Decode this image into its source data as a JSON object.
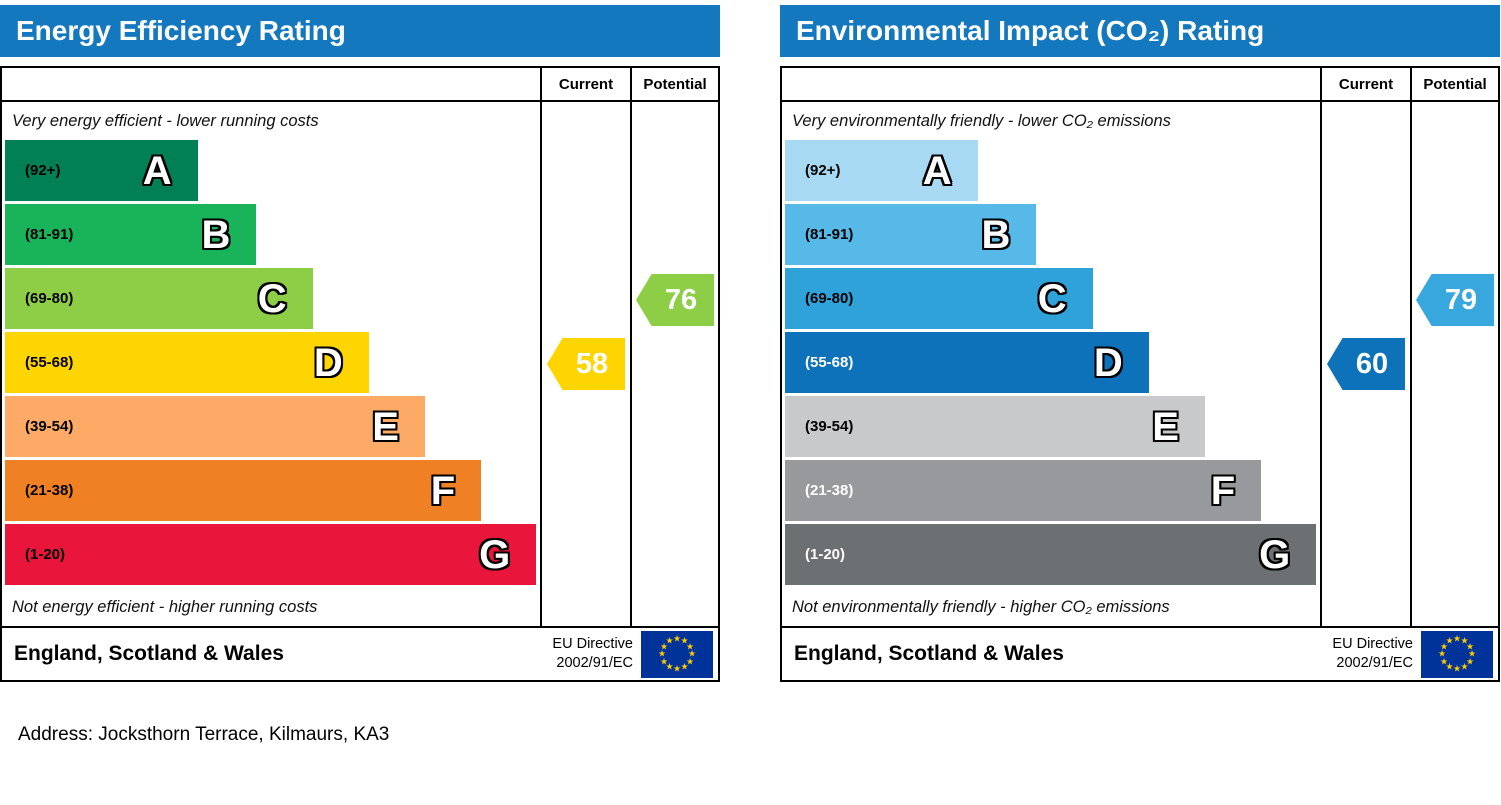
{
  "page": {
    "address_line": "Address: Jocksthorn Terrace, Kilmaurs, KA3"
  },
  "chart_data": [
    {
      "type": "bar",
      "subtype": "epc-rating-scale",
      "title": "Energy Efficiency Rating",
      "columns": {
        "current": "Current",
        "potential": "Potential"
      },
      "top_caption": "Very energy efficient - lower running costs",
      "bottom_caption": "Not energy efficient - higher running costs",
      "header_color": "#1478be",
      "bands": [
        {
          "letter": "A",
          "range": "(92+)",
          "color": "#008054",
          "width_pct": 36,
          "label_color": "#000000"
        },
        {
          "letter": "B",
          "range": "(81-91)",
          "color": "#19b459",
          "width_pct": 47,
          "label_color": "#000000"
        },
        {
          "letter": "C",
          "range": "(69-80)",
          "color": "#8dce46",
          "width_pct": 57.5,
          "label_color": "#000000"
        },
        {
          "letter": "D",
          "range": "(55-68)",
          "color": "#ffd500",
          "width_pct": 68,
          "label_color": "#000000"
        },
        {
          "letter": "E",
          "range": "(39-54)",
          "color": "#fcaa65",
          "width_pct": 78.5,
          "label_color": "#000000"
        },
        {
          "letter": "F",
          "range": "(21-38)",
          "color": "#ef8023",
          "width_pct": 89,
          "label_color": "#000000"
        },
        {
          "letter": "G",
          "range": "(1-20)",
          "color": "#e9153b",
          "width_pct": 99.3,
          "label_color": "#000000"
        }
      ],
      "current": {
        "value": "58",
        "band": "D",
        "band_index": 3,
        "color": "#ffd500"
      },
      "potential": {
        "value": "76",
        "band": "C",
        "band_index": 2,
        "color": "#8dce46"
      },
      "footer": {
        "region": "England, Scotland & Wales",
        "directive1": "EU Directive",
        "directive2": "2002/91/EC"
      }
    },
    {
      "type": "bar",
      "subtype": "epc-rating-scale",
      "title": "Environmental Impact (CO₂) Rating",
      "columns": {
        "current": "Current",
        "potential": "Potential"
      },
      "top_caption": "Very environmentally friendly - lower CO₂ emissions",
      "bottom_caption": "Not environmentally friendly - higher CO₂ emissions",
      "header_color": "#1478be",
      "bands": [
        {
          "letter": "A",
          "range": "(92+)",
          "color": "#a8d9f2",
          "width_pct": 36,
          "label_color": "#000000"
        },
        {
          "letter": "B",
          "range": "(81-91)",
          "color": "#56b9e7",
          "width_pct": 47,
          "label_color": "#000000"
        },
        {
          "letter": "C",
          "range": "(69-80)",
          "color": "#2fa2da",
          "width_pct": 57.5,
          "label_color": "#000000"
        },
        {
          "letter": "D",
          "range": "(55-68)",
          "color": "#0d72ba",
          "width_pct": 68,
          "label_color": "#ffffff"
        },
        {
          "letter": "E",
          "range": "(39-54)",
          "color": "#c8c9cb",
          "width_pct": 78.5,
          "label_color": "#000000"
        },
        {
          "letter": "F",
          "range": "(21-38)",
          "color": "#97999c",
          "width_pct": 89,
          "label_color": "#ffffff"
        },
        {
          "letter": "G",
          "range": "(1-20)",
          "color": "#6c7073",
          "width_pct": 99.3,
          "label_color": "#ffffff"
        }
      ],
      "current": {
        "value": "60",
        "band": "D",
        "band_index": 3,
        "color": "#0d72ba"
      },
      "potential": {
        "value": "79",
        "band": "C",
        "band_index": 2,
        "color": "#38a7de"
      },
      "footer": {
        "region": "England, Scotland & Wales",
        "directive1": "EU Directive",
        "directive2": "2002/91/EC"
      }
    }
  ]
}
